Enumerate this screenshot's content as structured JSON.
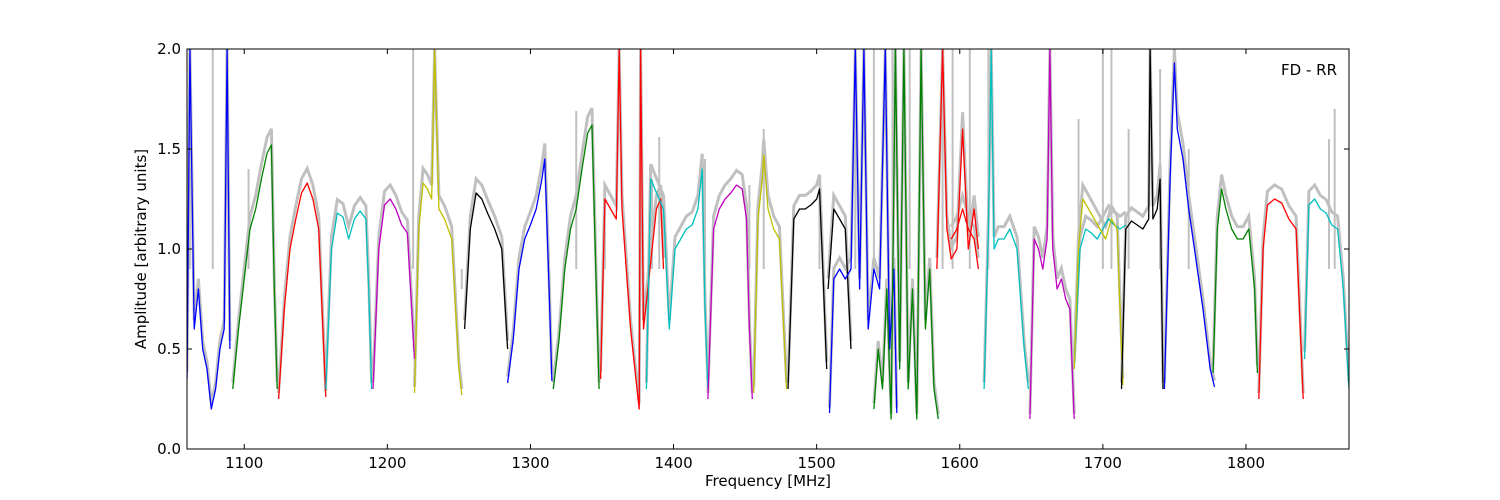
{
  "chart_data": {
    "type": "line",
    "xlabel": "Frequency [MHz]",
    "ylabel": "Amplitude [arbitrary units]",
    "annotation": "FD - RR",
    "xlim": [
      1060,
      1872
    ],
    "ylim": [
      0.0,
      2.0
    ],
    "xticks": [
      1100,
      1200,
      1300,
      1400,
      1500,
      1600,
      1700,
      1800
    ],
    "xtick_labels": [
      "1100",
      "1200",
      "1300",
      "1400",
      "1500",
      "1600",
      "1700",
      "1800"
    ],
    "yticks": [
      0.0,
      0.5,
      1.0,
      1.5,
      2.0
    ],
    "ytick_labels": [
      "0.0",
      "0.5",
      "1.0",
      "1.5",
      "2.0"
    ],
    "grid": false,
    "colors": {
      "blue": "#0000ff",
      "green": "#008000",
      "red": "#ff0000",
      "cyan": "#00bfbf",
      "magenta": "#bf00bf",
      "yellow": "#bfbf00",
      "black": "#000000",
      "gray": "#c0c0c0"
    },
    "background_series": {
      "color": "#c0c0c0",
      "spikes": [
        [
          1062,
          2.0
        ],
        [
          1078,
          2.0
        ],
        [
          1103,
          1.4
        ],
        [
          1218,
          2.0
        ],
        [
          1252,
          0.8
        ],
        [
          1332,
          1.69
        ],
        [
          1352,
          1.3
        ],
        [
          1385,
          1.35
        ],
        [
          1390,
          1.56
        ],
        [
          1422,
          1.45
        ],
        [
          1453,
          1.32
        ],
        [
          1463,
          1.6
        ],
        [
          1502,
          1.3
        ],
        [
          1527,
          2.0
        ],
        [
          1540,
          2.0
        ],
        [
          1553,
          2.0
        ],
        [
          1565,
          2.0
        ],
        [
          1588,
          2.0
        ],
        [
          1595,
          2.0
        ],
        [
          1607,
          2.0
        ],
        [
          1620,
          2.0
        ],
        [
          1683,
          1.65
        ],
        [
          1700,
          2.0
        ],
        [
          1706,
          2.0
        ],
        [
          1718,
          1.6
        ],
        [
          1740,
          1.9
        ],
        [
          1760,
          1.5
        ],
        [
          1858,
          1.55
        ],
        [
          1862,
          1.7
        ]
      ]
    },
    "series": [
      {
        "color": "blue",
        "x": [
          1060,
          1062,
          1065,
          1068,
          1071,
          1074,
          1077,
          1080,
          1083,
          1086,
          1088,
          1090
        ],
        "y": [
          0.35,
          2.0,
          0.6,
          0.8,
          0.5,
          0.4,
          0.2,
          0.3,
          0.5,
          0.6,
          2.0,
          0.5
        ]
      },
      {
        "color": "green",
        "x": [
          1092,
          1096,
          1100,
          1104,
          1108,
          1112,
          1116,
          1119,
          1121,
          1123
        ],
        "y": [
          0.3,
          0.6,
          0.85,
          1.1,
          1.2,
          1.35,
          1.48,
          1.52,
          0.8,
          0.3
        ]
      },
      {
        "color": "red",
        "x": [
          1124,
          1128,
          1132,
          1136,
          1140,
          1144,
          1148,
          1152,
          1155,
          1157
        ],
        "y": [
          0.25,
          0.7,
          1.0,
          1.15,
          1.28,
          1.33,
          1.25,
          1.1,
          0.6,
          0.26
        ]
      },
      {
        "color": "cyan",
        "x": [
          1157,
          1161,
          1165,
          1169,
          1173,
          1177,
          1181,
          1185,
          1187,
          1189
        ],
        "y": [
          0.3,
          1.0,
          1.18,
          1.16,
          1.05,
          1.15,
          1.19,
          1.15,
          0.8,
          0.3
        ]
      },
      {
        "color": "magenta",
        "x": [
          1190,
          1194,
          1198,
          1202,
          1206,
          1210,
          1214,
          1217,
          1219
        ],
        "y": [
          0.3,
          1.0,
          1.22,
          1.25,
          1.2,
          1.12,
          1.08,
          0.7,
          0.45
        ]
      },
      {
        "color": "yellow",
        "x": [
          1219,
          1222,
          1225,
          1228,
          1231,
          1233,
          1236,
          1240,
          1245,
          1250,
          1252
        ],
        "y": [
          0.28,
          1.1,
          1.33,
          1.3,
          1.25,
          2.0,
          1.2,
          1.15,
          1.05,
          0.4,
          0.27
        ]
      },
      {
        "color": "black",
        "x": [
          1254,
          1258,
          1262,
          1266,
          1270,
          1275,
          1280,
          1284
        ],
        "y": [
          0.6,
          1.1,
          1.28,
          1.25,
          1.18,
          1.1,
          1.0,
          0.5
        ]
      },
      {
        "color": "blue",
        "x": [
          1284,
          1288,
          1292,
          1296,
          1300,
          1304,
          1308,
          1310,
          1313,
          1315
        ],
        "y": [
          0.33,
          0.55,
          0.9,
          1.05,
          1.12,
          1.2,
          1.35,
          1.45,
          0.8,
          0.34
        ]
      },
      {
        "color": "green",
        "x": [
          1316,
          1320,
          1324,
          1328,
          1332,
          1336,
          1340,
          1343,
          1346,
          1348
        ],
        "y": [
          0.3,
          0.55,
          0.9,
          1.1,
          1.2,
          1.4,
          1.58,
          1.62,
          0.8,
          0.3
        ]
      },
      {
        "color": "red",
        "x": [
          1349,
          1352,
          1356,
          1360,
          1362,
          1364,
          1367,
          1370,
          1373,
          1376,
          1377,
          1379,
          1382,
          1385,
          1388,
          1391,
          1393
        ],
        "y": [
          0.35,
          1.25,
          1.2,
          1.15,
          2.0,
          1.2,
          0.9,
          0.6,
          0.4,
          0.2,
          2.0,
          0.6,
          0.8,
          1.0,
          1.2,
          1.25,
          0.9
        ]
      },
      {
        "color": "cyan",
        "x": [
          1381,
          1384,
          1387,
          1390,
          1393,
          1397,
          1401,
          1405,
          1409,
          1413,
          1417,
          1420,
          1422,
          1424
        ],
        "y": [
          0.3,
          1.35,
          1.3,
          1.25,
          1.2,
          0.6,
          1.0,
          1.05,
          1.1,
          1.12,
          1.2,
          1.4,
          0.7,
          0.3
        ]
      },
      {
        "color": "magenta",
        "x": [
          1424,
          1428,
          1432,
          1436,
          1440,
          1444,
          1448,
          1451,
          1453,
          1455
        ],
        "y": [
          0.25,
          1.1,
          1.2,
          1.25,
          1.28,
          1.32,
          1.3,
          1.15,
          0.6,
          0.25
        ]
      },
      {
        "color": "yellow",
        "x": [
          1456,
          1459,
          1462,
          1463,
          1466,
          1470,
          1474,
          1477,
          1479
        ],
        "y": [
          0.28,
          1.15,
          1.35,
          1.47,
          1.2,
          1.1,
          1.05,
          0.6,
          0.3
        ]
      },
      {
        "color": "black",
        "x": [
          1480,
          1484,
          1488,
          1492,
          1496,
          1500,
          1502,
          1504,
          1507
        ],
        "y": [
          0.3,
          1.15,
          1.2,
          1.2,
          1.22,
          1.25,
          1.3,
          0.95,
          0.4
        ]
      },
      {
        "color": "black",
        "x": [
          1508,
          1512,
          1516,
          1520,
          1524
        ],
        "y": [
          0.8,
          1.2,
          1.15,
          1.1,
          0.5
        ]
      },
      {
        "color": "blue",
        "x": [
          1509,
          1512,
          1516,
          1520,
          1524,
          1527,
          1530,
          1533,
          1536,
          1540,
          1544,
          1548,
          1551,
          1554,
          1556
        ],
        "y": [
          0.18,
          0.85,
          0.9,
          0.85,
          0.9,
          2.0,
          0.8,
          2.0,
          0.6,
          0.9,
          0.8,
          2.0,
          0.5,
          0.9,
          0.18
        ]
      },
      {
        "color": "green",
        "x": [
          1540,
          1543,
          1546,
          1549,
          1552,
          1555,
          1558,
          1561,
          1564,
          1567,
          1570,
          1573,
          1576,
          1579,
          1582,
          1585
        ],
        "y": [
          0.2,
          0.5,
          0.3,
          0.8,
          0.15,
          2.0,
          0.4,
          2.0,
          0.3,
          0.8,
          0.15,
          2.0,
          0.6,
          0.9,
          0.3,
          0.15
        ]
      },
      {
        "color": "red",
        "x": [
          1584,
          1588,
          1591,
          1594,
          1598,
          1602,
          1606,
          1610,
          1613
        ],
        "y": [
          0.9,
          2.0,
          1.1,
          0.95,
          1.0,
          1.6,
          1.0,
          1.2,
          1.0
        ]
      },
      {
        "color": "red",
        "x": [
          1594,
          1598,
          1602,
          1606,
          1610,
          1613
        ],
        "y": [
          1.05,
          1.1,
          1.2,
          1.1,
          1.05,
          0.9
        ]
      },
      {
        "color": "cyan",
        "x": [
          1617,
          1620,
          1622,
          1624,
          1627,
          1631,
          1635,
          1640,
          1645,
          1648
        ],
        "y": [
          0.3,
          1.1,
          2.0,
          1.0,
          1.05,
          1.05,
          1.1,
          1.0,
          0.5,
          0.3
        ]
      },
      {
        "color": "magenta",
        "x": [
          1649,
          1652,
          1655,
          1658,
          1661,
          1663,
          1665,
          1668,
          1671,
          1674,
          1677,
          1680
        ],
        "y": [
          0.15,
          1.05,
          1.0,
          0.9,
          1.05,
          2.0,
          1.0,
          0.8,
          0.85,
          0.75,
          0.7,
          0.15
        ]
      },
      {
        "color": "cyan",
        "x": [
          1680,
          1684,
          1688,
          1692,
          1696,
          1700,
          1704,
          1708,
          1712,
          1716
        ],
        "y": [
          0.4,
          1.0,
          1.1,
          1.08,
          1.05,
          1.1,
          1.15,
          1.12,
          1.1,
          1.12
        ]
      },
      {
        "color": "yellow",
        "x": [
          1680,
          1683,
          1686,
          1690,
          1694,
          1698,
          1702,
          1706,
          1710,
          1712,
          1714
        ],
        "y": [
          0.4,
          1.0,
          1.25,
          1.2,
          1.15,
          1.1,
          1.05,
          1.15,
          1.1,
          0.7,
          0.32
        ]
      },
      {
        "color": "black",
        "x": [
          1713,
          1716,
          1720,
          1724,
          1728,
          1732,
          1733,
          1735,
          1738,
          1740,
          1742
        ],
        "y": [
          0.3,
          1.1,
          1.14,
          1.12,
          1.1,
          1.15,
          2.0,
          1.15,
          1.2,
          1.35,
          0.3
        ]
      },
      {
        "color": "blue",
        "x": [
          1743,
          1747,
          1750,
          1752,
          1756,
          1760,
          1765,
          1770,
          1775,
          1778
        ],
        "y": [
          0.3,
          1.35,
          1.93,
          1.6,
          1.45,
          1.2,
          0.95,
          0.7,
          0.4,
          0.31
        ]
      },
      {
        "color": "green",
        "x": [
          1777,
          1780,
          1783,
          1786,
          1790,
          1794,
          1798,
          1802,
          1806,
          1808
        ],
        "y": [
          0.38,
          1.1,
          1.3,
          1.2,
          1.1,
          1.05,
          1.05,
          1.1,
          0.8,
          0.38
        ]
      },
      {
        "color": "red",
        "x": [
          1809,
          1812,
          1815,
          1820,
          1825,
          1830,
          1835,
          1838,
          1840
        ],
        "y": [
          0.25,
          1.0,
          1.22,
          1.25,
          1.23,
          1.15,
          1.1,
          0.6,
          0.25
        ]
      },
      {
        "color": "cyan",
        "x": [
          1841,
          1844,
          1848,
          1852,
          1856,
          1860,
          1864,
          1868,
          1872
        ],
        "y": [
          0.45,
          1.22,
          1.25,
          1.2,
          1.18,
          1.12,
          1.1,
          0.8,
          0.3
        ]
      }
    ]
  }
}
